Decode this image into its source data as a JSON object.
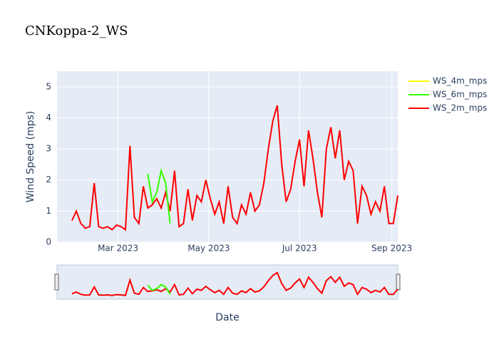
{
  "chart_data": {
    "type": "line",
    "title": "CNKoppa-2_WS",
    "xlabel": "Date",
    "ylabel": "Wind Speed (mps)",
    "x": [
      "2023-01-29",
      "2023-02-01",
      "2023-02-04",
      "2023-02-07",
      "2023-02-10",
      "2023-02-13",
      "2023-02-16",
      "2023-02-19",
      "2023-02-22",
      "2023-02-25",
      "2023-02-28",
      "2023-03-03",
      "2023-03-06",
      "2023-03-09",
      "2023-03-12",
      "2023-03-15",
      "2023-03-18",
      "2023-03-21",
      "2023-03-24",
      "2023-03-27",
      "2023-03-30",
      "2023-04-02",
      "2023-04-05",
      "2023-04-08",
      "2023-04-11",
      "2023-04-14",
      "2023-04-17",
      "2023-04-20",
      "2023-04-23",
      "2023-04-26",
      "2023-04-29",
      "2023-05-02",
      "2023-05-05",
      "2023-05-08",
      "2023-05-11",
      "2023-05-14",
      "2023-05-17",
      "2023-05-20",
      "2023-05-23",
      "2023-05-26",
      "2023-05-29",
      "2023-06-01",
      "2023-06-04",
      "2023-06-07",
      "2023-06-10",
      "2023-06-13",
      "2023-06-16",
      "2023-06-19",
      "2023-06-22",
      "2023-06-25",
      "2023-06-28",
      "2023-07-01",
      "2023-07-04",
      "2023-07-07",
      "2023-07-10",
      "2023-07-13",
      "2023-07-16",
      "2023-07-19",
      "2023-07-22",
      "2023-07-25",
      "2023-07-28",
      "2023-07-31",
      "2023-08-03",
      "2023-08-06",
      "2023-08-09",
      "2023-08-12",
      "2023-08-15",
      "2023-08-18",
      "2023-08-21",
      "2023-08-24",
      "2023-08-27",
      "2023-08-30",
      "2023-09-02",
      "2023-09-05"
    ],
    "series": [
      {
        "name": "WS_4m_mps",
        "color": "#ffff00",
        "values": [
          null,
          null,
          null,
          null,
          null,
          null,
          null,
          null,
          null,
          null,
          null,
          null,
          null,
          null,
          null,
          null,
          null,
          null,
          null,
          null,
          null,
          null,
          null,
          null,
          null,
          null,
          null,
          null,
          null,
          null,
          null,
          null,
          null,
          null,
          null,
          null,
          null,
          null,
          null,
          null,
          null,
          null,
          null,
          null,
          null,
          null,
          null,
          null,
          null,
          null,
          null,
          null,
          null,
          null,
          null,
          null,
          null,
          null,
          null,
          null,
          null,
          null,
          null,
          null,
          null,
          null,
          null,
          null,
          null,
          null,
          null,
          null,
          null,
          null
        ]
      },
      {
        "name": "WS_6m_mps",
        "color": "#33ff00",
        "values": [
          null,
          null,
          null,
          null,
          null,
          null,
          null,
          null,
          null,
          null,
          null,
          null,
          null,
          null,
          null,
          null,
          null,
          2.2,
          1.3,
          1.6,
          2.3,
          1.9,
          0.6,
          null,
          null,
          null,
          null,
          null,
          null,
          null,
          null,
          null,
          null,
          null,
          null,
          null,
          null,
          null,
          null,
          null,
          null,
          null,
          null,
          null,
          null,
          null,
          null,
          null,
          null,
          null,
          null,
          null,
          null,
          null,
          null,
          null,
          null,
          null,
          null,
          null,
          null,
          null,
          null,
          null,
          null,
          null,
          null,
          null,
          null,
          null,
          null,
          null,
          null,
          null
        ]
      },
      {
        "name": "WS_2m_mps",
        "color": "#ff0000",
        "values": [
          0.7,
          1.0,
          0.6,
          0.45,
          0.5,
          1.9,
          0.5,
          0.45,
          0.5,
          0.4,
          0.55,
          0.5,
          0.4,
          3.1,
          0.8,
          0.6,
          1.8,
          1.1,
          1.2,
          1.4,
          1.1,
          1.6,
          1.0,
          2.3,
          0.5,
          0.6,
          1.7,
          0.7,
          1.5,
          1.3,
          2.0,
          1.4,
          0.9,
          1.3,
          0.6,
          1.8,
          0.8,
          0.6,
          1.2,
          0.9,
          1.6,
          1.0,
          1.2,
          1.9,
          3.0,
          3.9,
          4.4,
          2.5,
          1.3,
          1.7,
          2.6,
          3.3,
          1.8,
          3.6,
          2.7,
          1.6,
          0.8,
          3.0,
          3.7,
          2.7,
          3.6,
          2.0,
          2.6,
          2.3,
          0.6,
          1.8,
          1.5,
          0.9,
          1.3,
          1.0,
          1.8,
          0.6,
          0.6,
          1.5
        ]
      }
    ],
    "xlim": [
      "2023-01-19",
      "2023-09-05"
    ],
    "xticks": [
      {
        "value": "2023-03-01",
        "label": "Mar 2023"
      },
      {
        "value": "2023-05-01",
        "label": "May 2023"
      },
      {
        "value": "2023-07-01",
        "label": "Jul 2023"
      },
      {
        "value": "2023-09-01",
        "label": "Sep 2023"
      }
    ],
    "ylim": [
      0,
      5.5
    ],
    "yticks": [
      0,
      1,
      2,
      3,
      4,
      5
    ],
    "grid": true,
    "legend": "right"
  }
}
